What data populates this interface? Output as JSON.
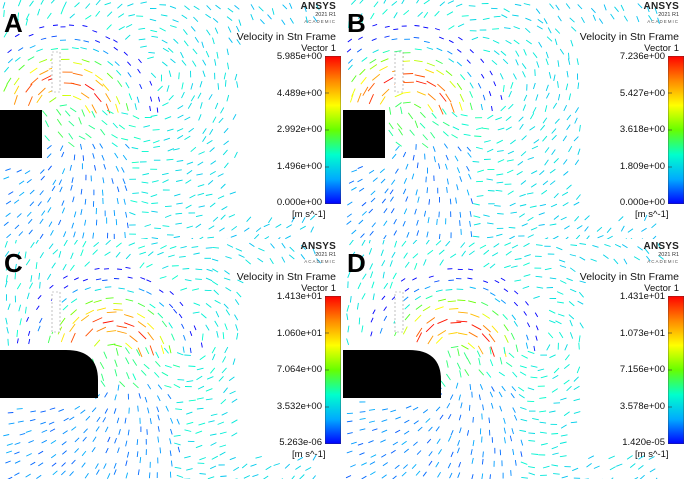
{
  "panels": [
    {
      "letter": "A",
      "logo": {
        "brand": "ANSYS",
        "version": "2021 R1",
        "edition": "ACADEMIC"
      },
      "legend": {
        "title": "Velocity in Stn Frame",
        "subtitle": "Vector 1",
        "ticks": [
          "5.985e+00",
          "4.489e+00",
          "2.992e+00",
          "1.496e+00",
          "0.000e+00"
        ],
        "unit": "[m s^-1]"
      }
    },
    {
      "letter": "B",
      "logo": {
        "brand": "ANSYS",
        "version": "2021 R1",
        "edition": "ACADEMIC"
      },
      "legend": {
        "title": "Velocity in Stn Frame",
        "subtitle": "Vector 1",
        "ticks": [
          "7.236e+00",
          "5.427e+00",
          "3.618e+00",
          "1.809e+00",
          "0.000e+00"
        ],
        "unit": "[m s^-1]"
      }
    },
    {
      "letter": "C",
      "logo": {
        "brand": "ANSYS",
        "version": "2021 R1",
        "edition": "ACADEMIC"
      },
      "legend": {
        "title": "Velocity in Stn Frame",
        "subtitle": "Vector 1",
        "ticks": [
          "1.413e+01",
          "1.060e+01",
          "7.064e+00",
          "3.532e+00",
          "5.263e-06"
        ],
        "unit": "[m s^-1]"
      }
    },
    {
      "letter": "D",
      "logo": {
        "brand": "ANSYS",
        "version": "2021 R1",
        "edition": "ACADEMIC"
      },
      "legend": {
        "title": "Velocity in Stn Frame",
        "subtitle": "Vector 1",
        "ticks": [
          "1.431e+01",
          "1.073e+01",
          "7.156e+00",
          "3.578e+00",
          "1.420e-05"
        ],
        "unit": "[m s^-1]"
      }
    }
  ],
  "colormap": [
    "#0000ff",
    "#00aaff",
    "#00ffcc",
    "#66ff00",
    "#ffff00",
    "#ff8800",
    "#ff0000"
  ]
}
